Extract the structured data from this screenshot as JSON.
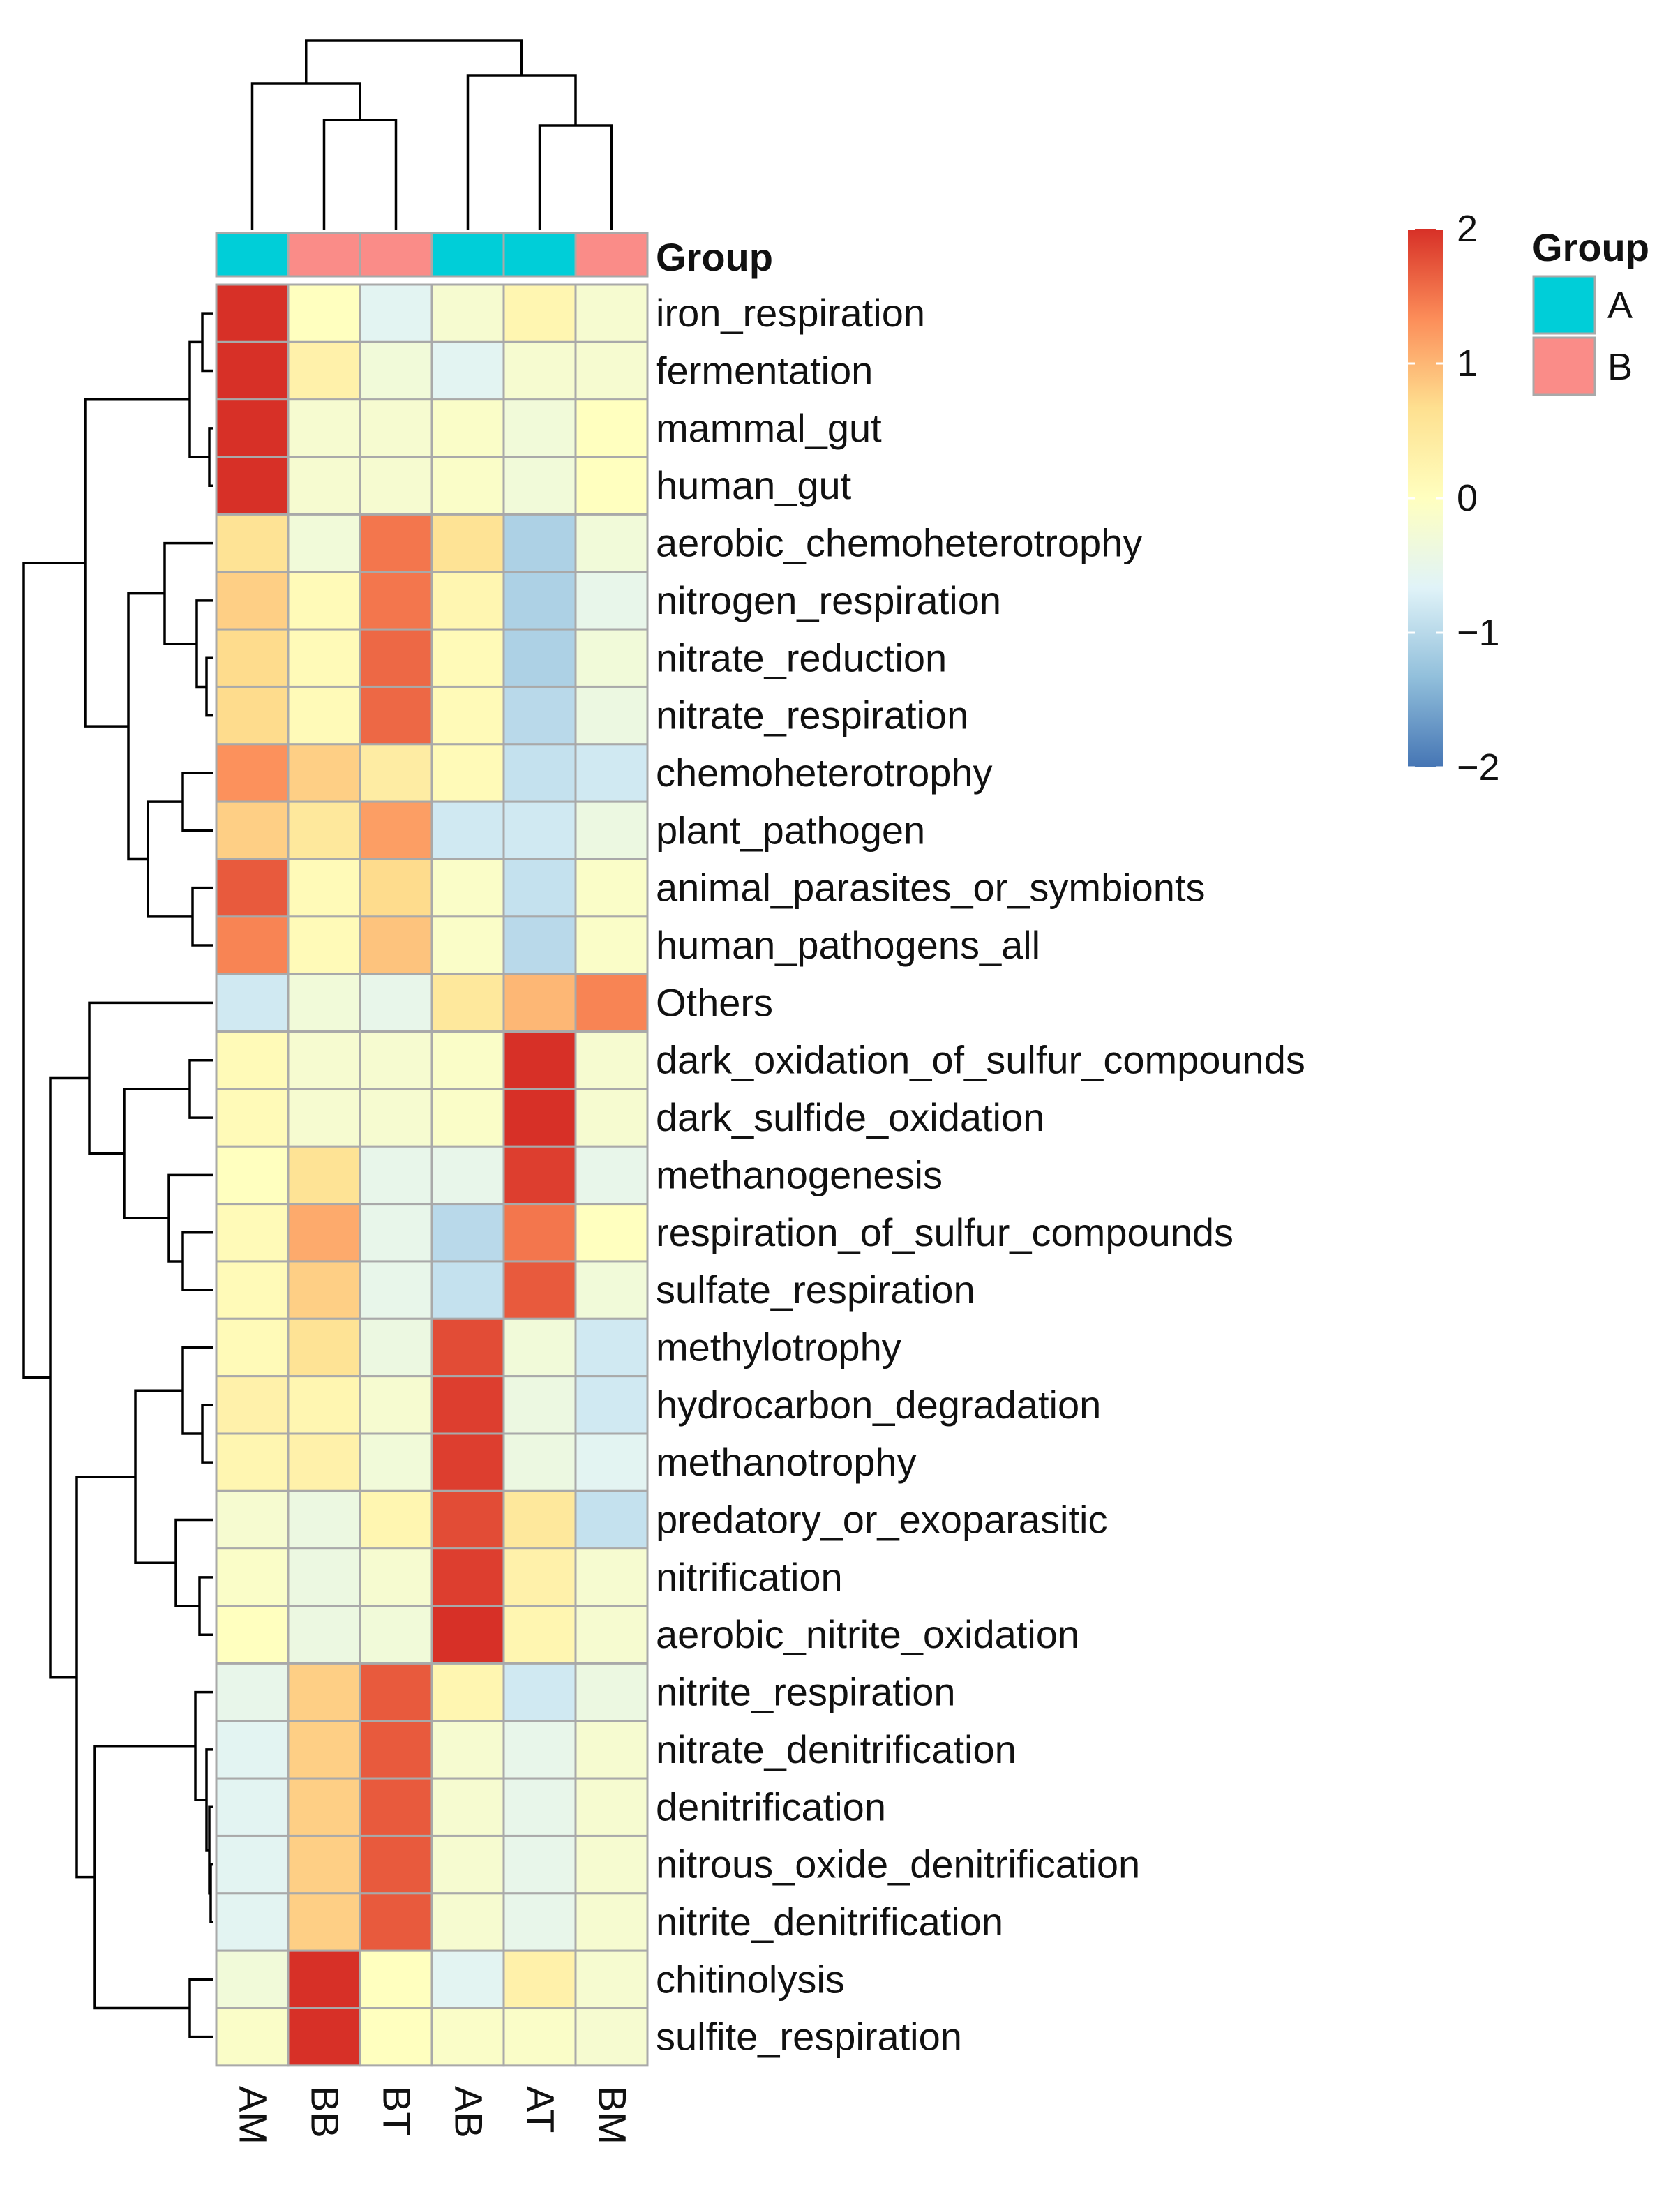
{
  "chart_data": {
    "type": "heatmap",
    "columns": [
      "AM",
      "BB",
      "BT",
      "AB",
      "AT",
      "BM"
    ],
    "column_groups": [
      "A",
      "B",
      "B",
      "A",
      "A",
      "B"
    ],
    "rows": [
      "iron_respiration",
      "fermentation",
      "mammal_gut",
      "human_gut",
      "aerobic_chemoheterotrophy",
      "nitrogen_respiration",
      "nitrate_reduction",
      "nitrate_respiration",
      "chemoheterotrophy",
      "plant_pathogen",
      "animal_parasites_or_symbionts",
      "human_pathogens_all",
      "Others",
      "dark_oxidation_of_sulfur_compounds",
      "dark_sulfide_oxidation",
      "methanogenesis",
      "respiration_of_sulfur_compounds",
      "sulfate_respiration",
      "methylotrophy",
      "hydrocarbon_degradation",
      "methanotrophy",
      "predatory_or_exoparasitic",
      "nitrification",
      "aerobic_nitrite_oxidation",
      "nitrite_respiration",
      "nitrate_denitrification",
      "denitrification",
      "nitrous_oxide_denitrification",
      "nitrite_denitrification",
      "chitinolysis",
      "sulfite_respiration"
    ],
    "values": [
      [
        2.0,
        0.0,
        -0.6,
        -0.2,
        0.2,
        -0.2
      ],
      [
        2.0,
        0.3,
        -0.3,
        -0.6,
        -0.2,
        -0.2
      ],
      [
        2.0,
        -0.2,
        -0.2,
        -0.1,
        -0.3,
        0.0
      ],
      [
        2.0,
        -0.2,
        -0.2,
        -0.1,
        -0.3,
        0.0
      ],
      [
        0.6,
        -0.3,
        1.5,
        0.6,
        -1.1,
        -0.3
      ],
      [
        0.8,
        0.1,
        1.5,
        0.2,
        -1.1,
        -0.5
      ],
      [
        0.7,
        0.1,
        1.6,
        0.1,
        -1.1,
        -0.3
      ],
      [
        0.7,
        0.1,
        1.6,
        0.1,
        -1.0,
        -0.4
      ],
      [
        1.3,
        0.8,
        0.4,
        0.1,
        -0.9,
        -0.8
      ],
      [
        0.8,
        0.5,
        1.2,
        -0.8,
        -0.8,
        -0.4
      ],
      [
        1.7,
        0.1,
        0.7,
        -0.1,
        -0.9,
        -0.1
      ],
      [
        1.4,
        0.1,
        0.9,
        -0.1,
        -1.0,
        -0.1
      ],
      [
        -0.8,
        -0.3,
        -0.5,
        0.5,
        1.0,
        1.4
      ],
      [
        0.1,
        -0.2,
        -0.2,
        -0.1,
        2.0,
        -0.2
      ],
      [
        0.1,
        -0.2,
        -0.2,
        -0.1,
        2.0,
        -0.2
      ],
      [
        0.0,
        0.6,
        -0.5,
        -0.5,
        1.9,
        -0.5
      ],
      [
        0.1,
        1.1,
        -0.5,
        -1.0,
        1.5,
        0.0
      ],
      [
        0.1,
        0.8,
        -0.5,
        -0.9,
        1.7,
        -0.3
      ],
      [
        0.1,
        0.6,
        -0.4,
        1.8,
        -0.3,
        -0.8
      ],
      [
        0.3,
        0.2,
        -0.2,
        1.9,
        -0.4,
        -0.8
      ],
      [
        0.2,
        0.3,
        -0.3,
        1.9,
        -0.4,
        -0.6
      ],
      [
        -0.2,
        -0.4,
        0.2,
        1.8,
        0.5,
        -0.9
      ],
      [
        -0.1,
        -0.4,
        -0.2,
        1.9,
        0.3,
        -0.2
      ],
      [
        0.0,
        -0.4,
        -0.3,
        2.0,
        0.2,
        -0.2
      ],
      [
        -0.5,
        0.8,
        1.7,
        0.2,
        -0.8,
        -0.4
      ],
      [
        -0.6,
        0.8,
        1.7,
        -0.2,
        -0.5,
        -0.2
      ],
      [
        -0.6,
        0.8,
        1.7,
        -0.2,
        -0.5,
        -0.2
      ],
      [
        -0.6,
        0.8,
        1.7,
        -0.2,
        -0.5,
        -0.2
      ],
      [
        -0.6,
        0.8,
        1.7,
        -0.2,
        -0.5,
        -0.2
      ],
      [
        -0.3,
        2.0,
        0.0,
        -0.6,
        0.3,
        -0.2
      ],
      [
        -0.1,
        2.0,
        0.0,
        -0.1,
        -0.1,
        -0.2
      ]
    ],
    "color_scale": {
      "range": [
        -2,
        2
      ],
      "ticks": [
        2,
        1,
        0,
        -1,
        -2
      ],
      "tick_labels": [
        "2",
        "1",
        "0",
        "−1",
        "−2"
      ],
      "stops": [
        "#4575B4",
        "#91BFDB",
        "#E0F3F8",
        "#FFFFBF",
        "#FEE090",
        "#FC8D59",
        "#D73027"
      ]
    },
    "group_annotation": {
      "title": "Group",
      "levels": [
        "A",
        "B"
      ],
      "colors": {
        "A": "#00CED8",
        "B": "#FA8C88"
      }
    },
    "row_dendrogram": true,
    "column_dendrogram": true
  }
}
